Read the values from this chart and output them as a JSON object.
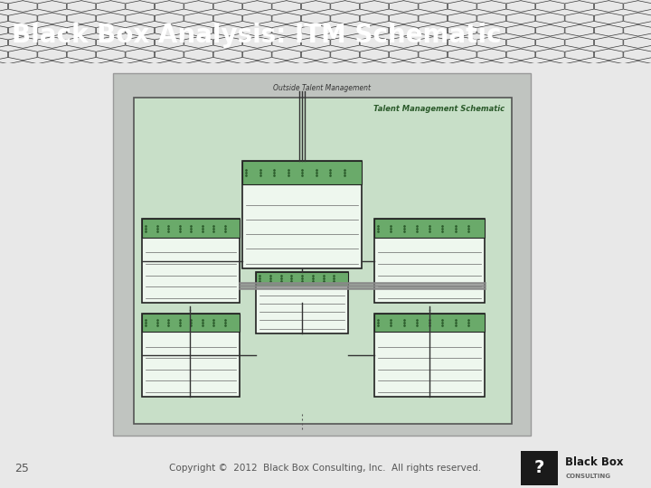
{
  "title": "Black Box Analysis: ITM Schematic",
  "title_color": "#ffffff",
  "title_bg_color": "#1a1a1a",
  "slide_bg_color": "#e8e8e8",
  "footer_number": "25",
  "footer_text": "Copyright ©  2012  Black Box Consulting, Inc.  All rights reserved.",
  "schematic_title": "Talent Management Schematic",
  "outer_label": "Outside Talent Management",
  "outer_bg": "#c0c4c0",
  "inner_bg": "#c8dfc8",
  "box_border": "#222222",
  "green_fill": "#6aaa6a",
  "dark_green": "#2a5a2a"
}
